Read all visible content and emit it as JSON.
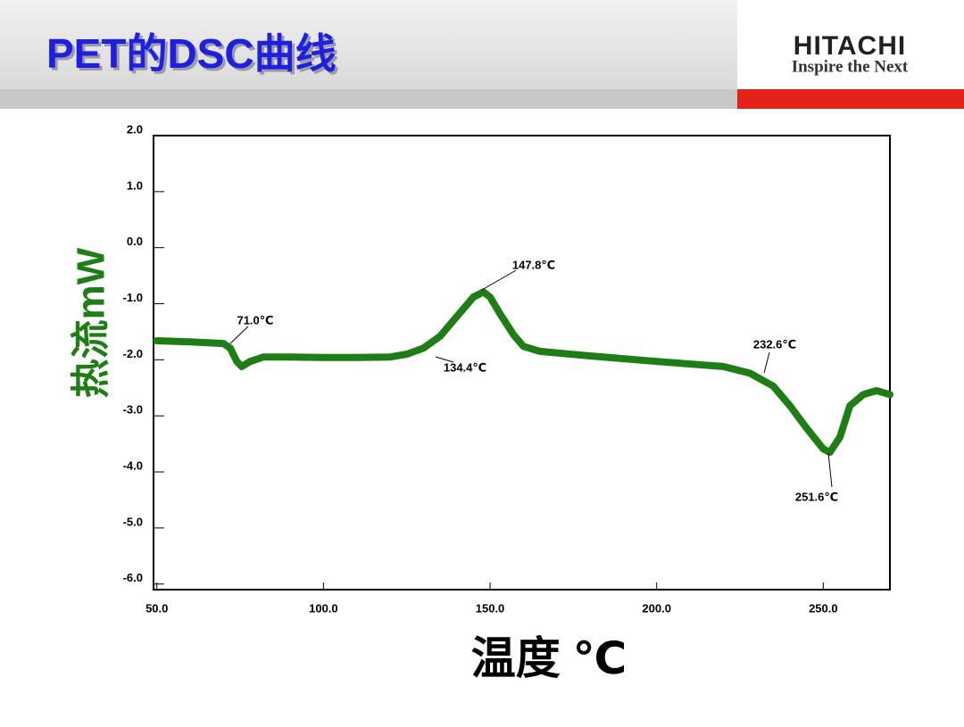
{
  "header": {
    "logo": "HITACHI",
    "tagline": "Inspire the Next"
  },
  "chart_data": {
    "type": "line",
    "title": "PET的DSC曲线",
    "x_label": "温度  ℃",
    "y_label": "热流mW",
    "x": [
      50,
      60,
      70,
      72,
      74,
      75.5,
      78,
      82,
      90,
      100,
      110,
      120,
      125,
      130,
      135,
      140,
      145,
      148,
      150,
      153,
      157,
      160,
      165,
      180,
      200,
      220,
      228,
      235,
      240,
      245,
      250,
      252,
      255,
      258,
      262,
      266,
      270
    ],
    "series": [
      {
        "name": "PET",
        "color": "#1e7d14",
        "values": [
          -1.66,
          -1.68,
          -1.71,
          -1.79,
          -2.03,
          -2.12,
          -2.03,
          -1.95,
          -1.95,
          -1.96,
          -1.96,
          -1.95,
          -1.9,
          -1.79,
          -1.58,
          -1.23,
          -0.88,
          -0.79,
          -0.88,
          -1.18,
          -1.55,
          -1.76,
          -1.85,
          -1.93,
          -2.03,
          -2.12,
          -2.24,
          -2.47,
          -2.82,
          -3.22,
          -3.59,
          -3.65,
          -3.38,
          -2.82,
          -2.62,
          -2.55,
          -2.62
        ]
      }
    ],
    "xlim": [
      49,
      270
    ],
    "ylim": [
      -6.1,
      2.0
    ],
    "xticks": [
      {
        "value": 50,
        "label": "50.0"
      },
      {
        "value": 100,
        "label": "100.0"
      },
      {
        "value": 150,
        "label": "150.0"
      },
      {
        "value": 200,
        "label": "200.0"
      },
      {
        "value": 250,
        "label": "250.0"
      }
    ],
    "yticks": [
      {
        "value": 2,
        "label": "2.0"
      },
      {
        "value": 1,
        "label": "1.0"
      },
      {
        "value": 0,
        "label": "0.0"
      },
      {
        "value": -1,
        "label": "-1.0"
      },
      {
        "value": -2,
        "label": "-2.0"
      },
      {
        "value": -3,
        "label": "-3.0"
      },
      {
        "value": -4,
        "label": "-4.0"
      },
      {
        "value": -5,
        "label": "-5.0"
      },
      {
        "value": -6,
        "label": "-6.0"
      }
    ],
    "annotations": [
      "71.0℃",
      "147.8℃",
      "134.4℃",
      "232.6℃",
      "251.6℃"
    ],
    "grid": false
  }
}
